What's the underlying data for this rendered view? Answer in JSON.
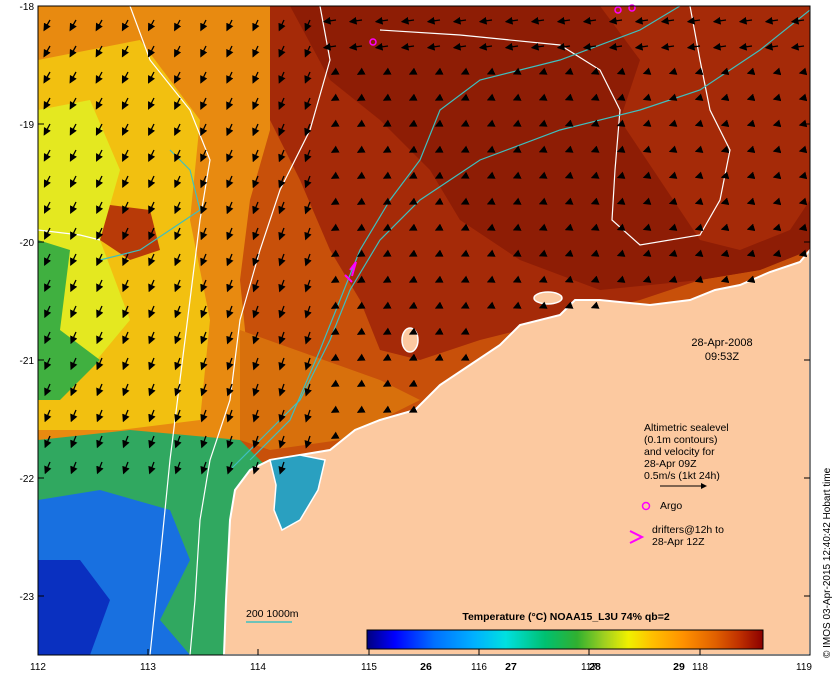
{
  "map": {
    "lon_ticks": [
      "112",
      "113",
      "114",
      "115",
      "116",
      "117",
      "118",
      "119"
    ],
    "lat_ticks": [
      "-18",
      "-19",
      "-20",
      "-21",
      "-22",
      "-23"
    ],
    "lon_range": [
      112,
      119
    ],
    "lat_range": [
      -18,
      -23.6
    ],
    "land_color": "#fcc9a0",
    "coast_color": "#ffffff",
    "isobath_color": "#3fbfbf"
  },
  "labels": {
    "date": "28-Apr-2008",
    "time": "09:53Z",
    "altimetry_line1": "Altimetric sealevel",
    "altimetry_line2": "(0.1m contours)",
    "altimetry_line3": "and velocity for",
    "altimetry_line4": "28-Apr 09Z",
    "velocity_scale": "0.5m/s (1kt 24h)",
    "argo": "Argo",
    "drifters_line1": "drifters@12h to",
    "drifters_line2": "28-Apr 12Z",
    "isobath_legend": "200  1000m",
    "colorbar_title": "Temperature (°C) NOAA15_L3U 74% qb=2",
    "colorbar_ticks": [
      "26",
      "27",
      "28",
      "29"
    ],
    "credit": "© IMOS 03-Apr-2015 12:40:42 Hobart time"
  },
  "colors": {
    "argo": "#ff00ff",
    "drifter": "#ff00ff",
    "colorbar": [
      "#00007f",
      "#0000ff",
      "#0070ff",
      "#00b0ff",
      "#00e0e0",
      "#00c070",
      "#30b030",
      "#a0d020",
      "#f0f000",
      "#ffc000",
      "#ff9000",
      "#e06000",
      "#c03000",
      "#8b0000"
    ]
  }
}
